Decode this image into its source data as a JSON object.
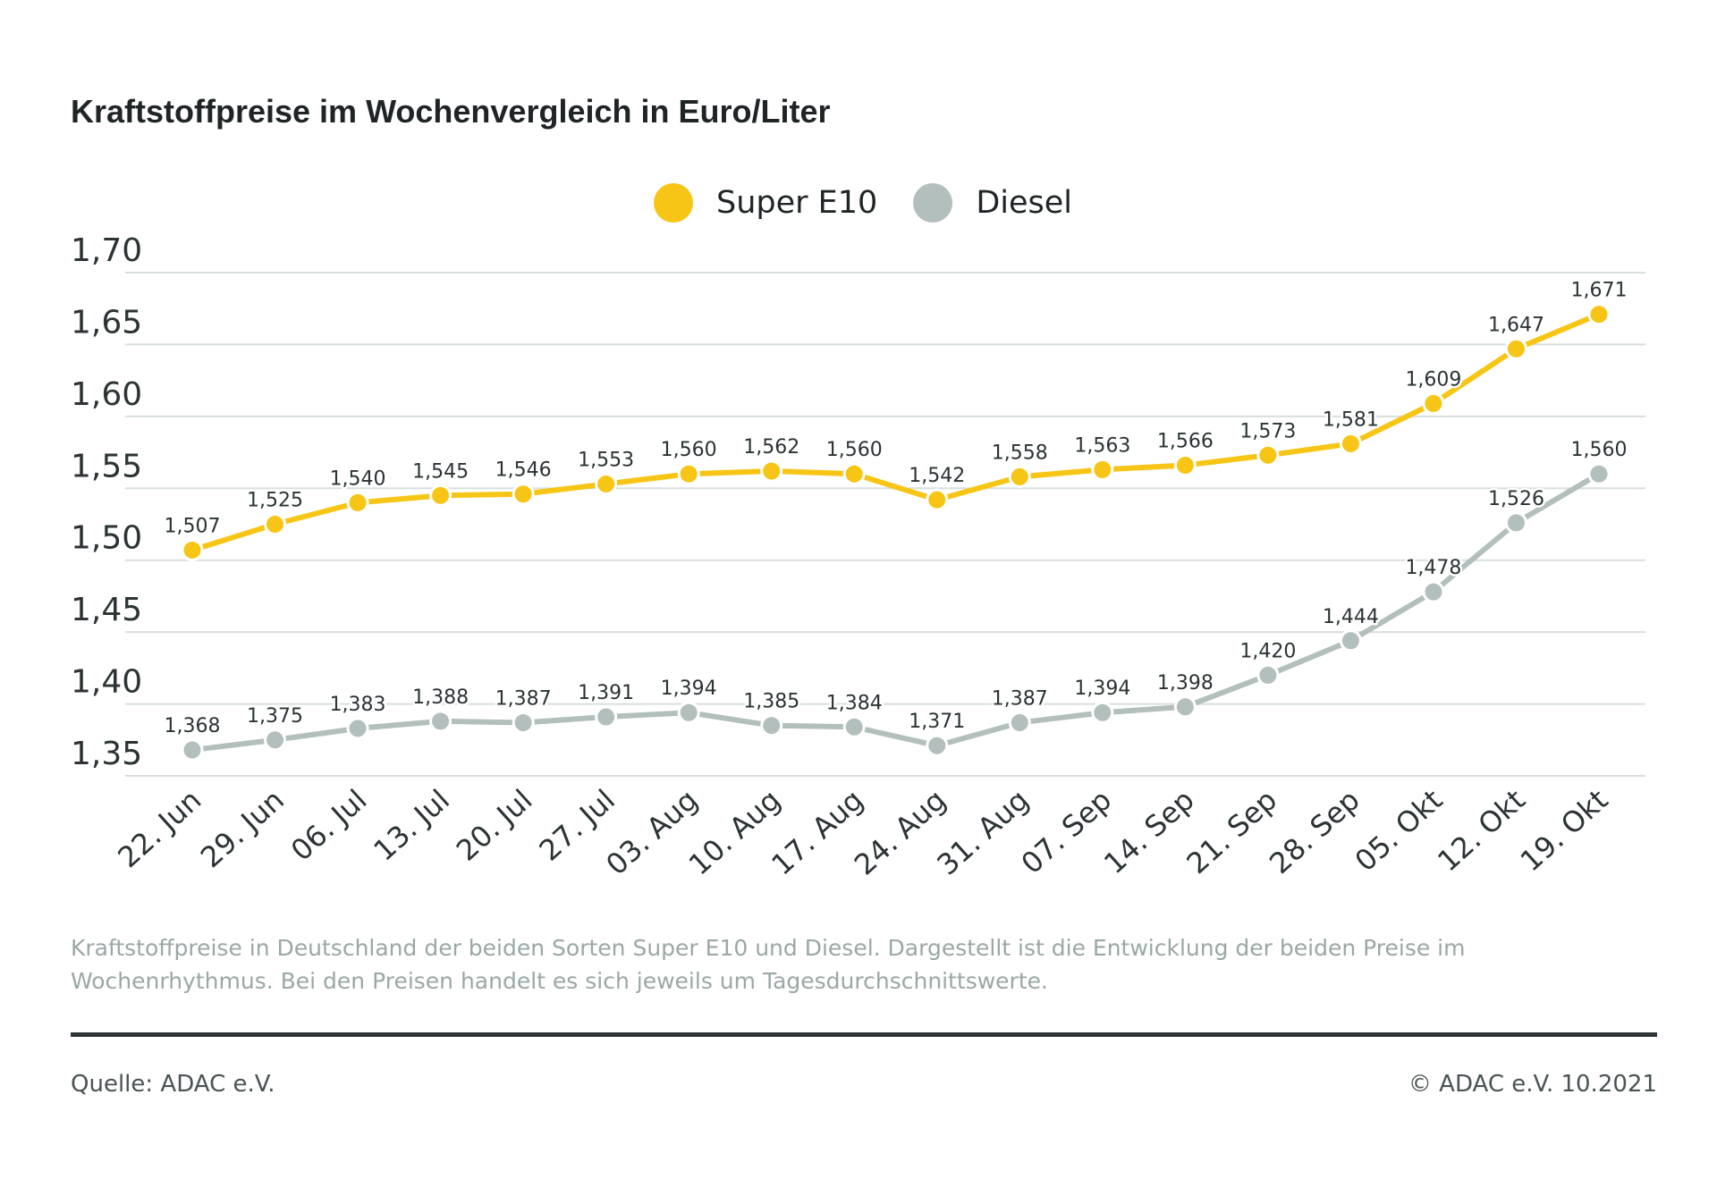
{
  "title": "Kraftstoffpreise im Wochenvergleich in Euro/Liter",
  "description": "Kraftstoffpreise in Deutschland der beiden Sorten Super E10 und Diesel. Dargestellt ist die Entwicklung der beiden Preise im Wochenrhythmus. Bei den Preisen handelt es sich jeweils um Tagesdurchschnittswerte.",
  "footer": {
    "source": "Quelle: ADAC e.V.",
    "copyright": "© ADAC e.V. 10.2021"
  },
  "colors": {
    "super_e10": "#f7c515",
    "diesel": "#b3bfbc",
    "gridline": "#d8dfdd",
    "text": "#2b3335"
  },
  "chart_data": {
    "type": "line",
    "title": "Kraftstoffpreise im Wochenvergleich in Euro/Liter",
    "xlabel": "",
    "ylabel": "",
    "categories": [
      "22. Jun",
      "29. Jun",
      "06. Jul",
      "13. Jul",
      "20. Jul",
      "27. Jul",
      "03. Aug",
      "10. Aug",
      "17. Aug",
      "24. Aug",
      "31. Aug",
      "07. Sep",
      "14. Sep",
      "21. Sep",
      "28. Sep",
      "05. Okt",
      "12. Okt",
      "19. Okt"
    ],
    "ylim": [
      1.35,
      1.7
    ],
    "yticks": [
      1.35,
      1.4,
      1.45,
      1.5,
      1.55,
      1.6,
      1.65,
      1.7
    ],
    "ytick_labels": [
      "1,35",
      "1,40",
      "1,45",
      "1,50",
      "1,55",
      "1,60",
      "1,65",
      "1,70"
    ],
    "grid": true,
    "legend_position": "top-center",
    "series": [
      {
        "name": "Super E10",
        "color": "#f7c515",
        "values": [
          1.507,
          1.525,
          1.54,
          1.545,
          1.546,
          1.553,
          1.56,
          1.562,
          1.56,
          1.542,
          1.558,
          1.563,
          1.566,
          1.573,
          1.581,
          1.609,
          1.647,
          1.671
        ],
        "labels": [
          "1,507",
          "1,525",
          "1,540",
          "1,545",
          "1,546",
          "1,553",
          "1,560",
          "1,562",
          "1,560",
          "1,542",
          "1,558",
          "1,563",
          "1,566",
          "1,573",
          "1,581",
          "1,609",
          "1,647",
          "1,671"
        ]
      },
      {
        "name": "Diesel",
        "color": "#b3bfbc",
        "values": [
          1.368,
          1.375,
          1.383,
          1.388,
          1.387,
          1.391,
          1.394,
          1.385,
          1.384,
          1.371,
          1.387,
          1.394,
          1.398,
          1.42,
          1.444,
          1.478,
          1.526,
          1.56
        ],
        "labels": [
          "1,368",
          "1,375",
          "1,383",
          "1,388",
          "1,387",
          "1,391",
          "1,394",
          "1,385",
          "1,384",
          "1,371",
          "1,387",
          "1,394",
          "1,398",
          "1,420",
          "1,444",
          "1,478",
          "1,526",
          "1,560"
        ]
      }
    ]
  }
}
